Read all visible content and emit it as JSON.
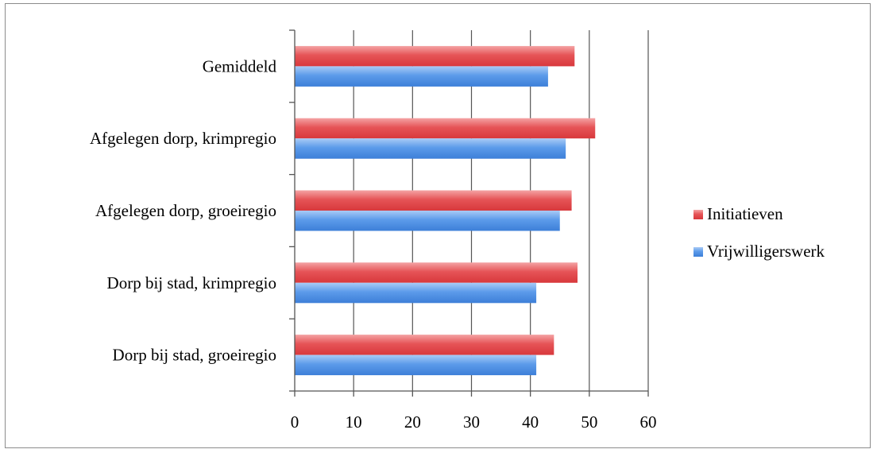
{
  "chart_data": {
    "type": "bar",
    "orientation": "horizontal",
    "categories": [
      "Gemiddeld",
      "Afgelegen dorp, krimpregio",
      "Afgelegen dorp, groeiregio",
      "Dorp bij stad, krimpregio",
      "Dorp bij stad, groeiregio"
    ],
    "series": [
      {
        "name": "Initiatieven",
        "values": [
          47.5,
          51,
          47,
          48,
          44
        ],
        "color": "#e8474b"
      },
      {
        "name": "Vrijwilligerswerk",
        "values": [
          43,
          46,
          45,
          41,
          41
        ],
        "color": "#4a8ee6"
      }
    ],
    "xlim": [
      0,
      60
    ],
    "xticks": [
      0,
      10,
      20,
      30,
      40,
      50,
      60
    ],
    "grid": true,
    "legend": "right"
  }
}
